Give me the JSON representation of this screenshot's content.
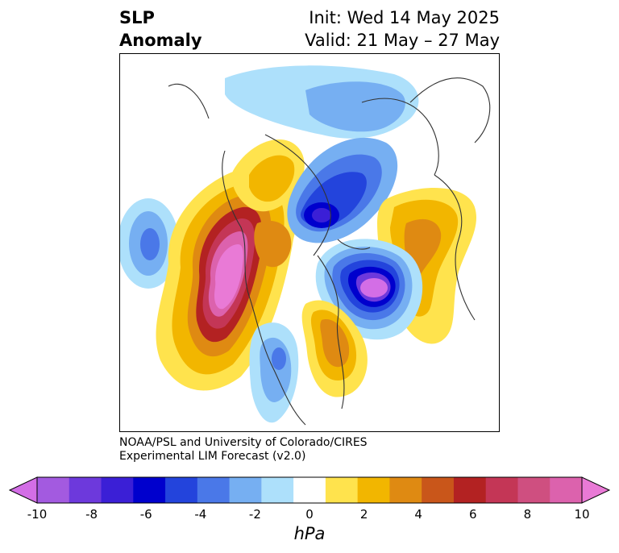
{
  "title": {
    "left": [
      "SLP",
      "Anomaly"
    ],
    "right": [
      "Init: Wed 14 May 2025",
      "Valid: 21 May – 27 May"
    ]
  },
  "credit": [
    "NOAA/PSL and University of Colorado/CIRES",
    "Experimental LIM Forecast (v2.0)"
  ],
  "colorbar": {
    "unit": "hPa",
    "ticks": [
      "-10",
      "-8",
      "-6",
      "-4",
      "-2",
      "0",
      "2",
      "4",
      "6",
      "8",
      "10"
    ],
    "colors": [
      "#d36ee6",
      "#a35ae0",
      "#6d39dc",
      "#3b1fd6",
      "#0000cd",
      "#2344dc",
      "#4a78e8",
      "#76aff2",
      "#ade0fb",
      "#ffffff",
      "#ffe34d",
      "#f2b600",
      "#df8a12",
      "#c9561a",
      "#b32222",
      "#c43656",
      "#cf4f80",
      "#dc62ad",
      "#e97ad6"
    ]
  },
  "colors": {
    "land_outline": "#333333",
    "frame": "#000000"
  }
}
